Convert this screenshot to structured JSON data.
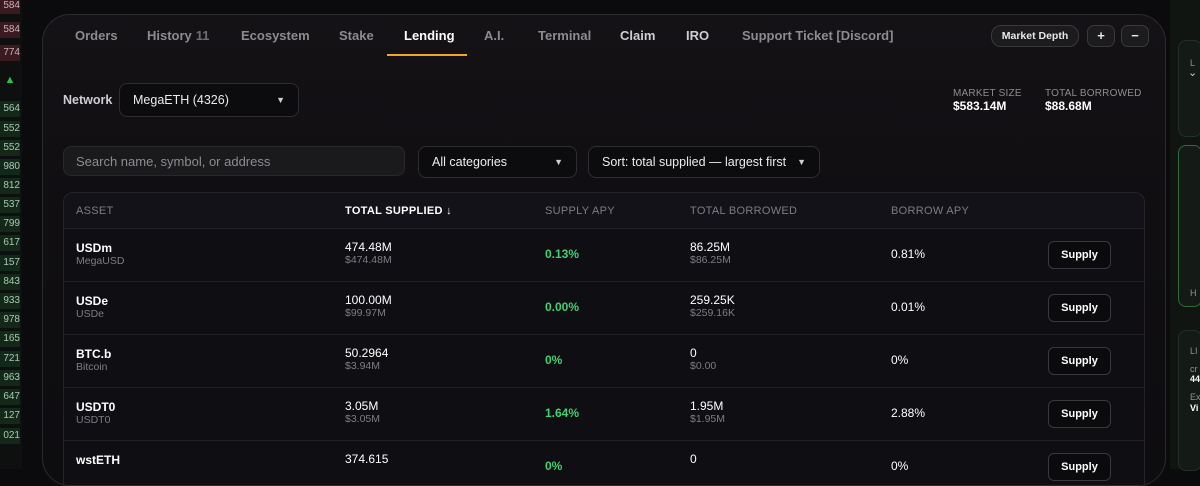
{
  "tabs": [
    {
      "label": "Orders",
      "count": ""
    },
    {
      "label": "History",
      "count": "11"
    },
    {
      "label": "Ecosystem",
      "count": ""
    },
    {
      "label": "Stake",
      "count": ""
    },
    {
      "label": "Lending",
      "count": ""
    },
    {
      "label": "A.I.",
      "count": ""
    },
    {
      "label": "Terminal",
      "count": ""
    },
    {
      "label": "Claim",
      "count": ""
    },
    {
      "label": "IRO",
      "count": ""
    },
    {
      "label": "Support Ticket [Discord]",
      "count": ""
    }
  ],
  "header_buttons": {
    "market_depth": "Market Depth",
    "zoom_in": "+",
    "zoom_out": "−"
  },
  "network": {
    "label": "Network",
    "value": "MegaETH (4326)"
  },
  "stats": {
    "market_size_label": "MARKET SIZE",
    "market_size_value": "$583.14M",
    "total_borrowed_label": "TOTAL BORROWED",
    "total_borrowed_value": "$88.68M"
  },
  "filters": {
    "search_placeholder": "Search name, symbol, or address",
    "category": "All categories",
    "sort": "Sort: total supplied — largest first"
  },
  "table": {
    "headers": {
      "asset": "ASSET",
      "total_supplied": "TOTAL SUPPLIED ↓",
      "supply_apy": "SUPPLY APY",
      "total_borrowed": "TOTAL BORROWED",
      "borrow_apy": "BORROW APY"
    },
    "action_label": "Supply",
    "rows": [
      {
        "symbol": "USDm",
        "name": "MegaUSD",
        "supplied": "474.48M",
        "supplied_usd": "$474.48M",
        "supply_apy": "0.13%",
        "borrowed": "86.25M",
        "borrowed_usd": "$86.25M",
        "borrow_apy": "0.81%"
      },
      {
        "symbol": "USDe",
        "name": "USDe",
        "supplied": "100.00M",
        "supplied_usd": "$99.97M",
        "supply_apy": "0.00%",
        "borrowed": "259.25K",
        "borrowed_usd": "$259.16K",
        "borrow_apy": "0.01%"
      },
      {
        "symbol": "BTC.b",
        "name": "Bitcoin",
        "supplied": "50.2964",
        "supplied_usd": "$3.94M",
        "supply_apy": "0%",
        "borrowed": "0",
        "borrowed_usd": "$0.00",
        "borrow_apy": "0%"
      },
      {
        "symbol": "USDT0",
        "name": "USDT0",
        "supplied": "3.05M",
        "supplied_usd": "$3.05M",
        "supply_apy": "1.64%",
        "borrowed": "1.95M",
        "borrowed_usd": "$1.95M",
        "borrow_apy": "2.88%"
      },
      {
        "symbol": "wstETH",
        "name": "",
        "supplied": "374.615",
        "supplied_usd": "",
        "supply_apy": "0%",
        "borrowed": "0",
        "borrowed_usd": "",
        "borrow_apy": "0%"
      }
    ]
  },
  "left_orderbook": {
    "asks": [
      "584",
      "584",
      "774"
    ],
    "bids": [
      "564",
      "552",
      "552",
      "980",
      "812",
      "537",
      "799",
      "617",
      "157",
      "843",
      "933",
      "978",
      "165",
      "721",
      "963",
      "647",
      "127",
      "021"
    ]
  },
  "right_panel_fragments": [
    "L",
    "H",
    "LI",
    "cr",
    "44",
    "Ex",
    "Vi"
  ],
  "colors": {
    "accent": "#f0a824",
    "positive": "#3fd072",
    "background": "#0b0a0c"
  }
}
